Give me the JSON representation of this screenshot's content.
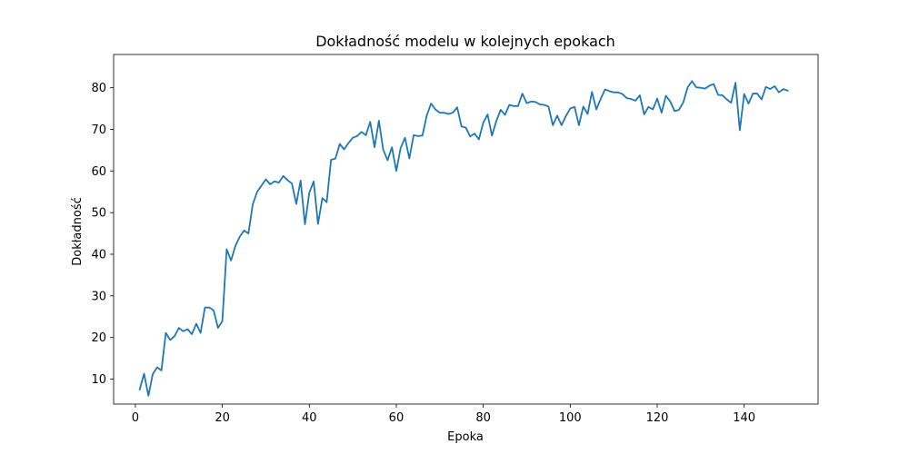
{
  "chart_data": {
    "type": "line",
    "title": "Dokładność modelu w kolejnych epokach",
    "xlabel": "Epoka",
    "ylabel": "Dokładność",
    "xlim": [
      -5,
      157
    ],
    "ylim": [
      4,
      88
    ],
    "xticks": [
      0,
      20,
      40,
      60,
      80,
      100,
      120,
      140
    ],
    "yticks": [
      10,
      20,
      30,
      40,
      50,
      60,
      70,
      80
    ],
    "grid": false,
    "color": "#1f77b4",
    "x": [
      1,
      2,
      3,
      4,
      5,
      6,
      7,
      8,
      9,
      10,
      11,
      12,
      13,
      14,
      15,
      16,
      17,
      18,
      19,
      20,
      21,
      22,
      23,
      24,
      25,
      26,
      27,
      28,
      29,
      30,
      31,
      32,
      33,
      34,
      35,
      36,
      37,
      38,
      39,
      40,
      41,
      42,
      43,
      44,
      45,
      46,
      47,
      48,
      49,
      50,
      51,
      52,
      53,
      54,
      55,
      56,
      57,
      58,
      59,
      60,
      61,
      62,
      63,
      64,
      65,
      66,
      67,
      68,
      69,
      70,
      71,
      72,
      73,
      74,
      75,
      76,
      77,
      78,
      79,
      80,
      81,
      82,
      83,
      84,
      85,
      86,
      87,
      88,
      89,
      90,
      91,
      92,
      93,
      94,
      95,
      96,
      97,
      98,
      99,
      100,
      101,
      102,
      103,
      104,
      105,
      106,
      107,
      108,
      109,
      110,
      111,
      112,
      113,
      114,
      115,
      116,
      117,
      118,
      119,
      120,
      121,
      122,
      123,
      124,
      125,
      126,
      127,
      128,
      129,
      130,
      131,
      132,
      133,
      134,
      135,
      136,
      137,
      138,
      139,
      140,
      141,
      142,
      143,
      144,
      145,
      146,
      147,
      148,
      149,
      150
    ],
    "y": [
      7.5,
      11.3,
      6.0,
      11.2,
      12.8,
      12.1,
      21.1,
      19.4,
      20.3,
      22.3,
      21.5,
      22.0,
      20.8,
      23.3,
      21.1,
      27.2,
      27.2,
      26.5,
      22.3,
      23.9,
      41.2,
      38.5,
      42.0,
      44.2,
      45.7,
      45.0,
      52.0,
      55.0,
      56.5,
      58.0,
      56.8,
      57.5,
      57.2,
      58.8,
      57.8,
      57.0,
      52.1,
      57.7,
      47.2,
      54.8,
      57.5,
      47.3,
      53.5,
      52.5,
      62.7,
      63.0,
      66.5,
      65.2,
      66.7,
      68.0,
      68.4,
      69.4,
      68.6,
      71.8,
      65.7,
      72.1,
      65.1,
      62.6,
      65.7,
      60.0,
      65.5,
      68.0,
      63.0,
      68.6,
      68.4,
      68.5,
      73.3,
      76.2,
      74.8,
      74.0,
      74.0,
      73.7,
      74.0,
      75.3,
      70.7,
      70.4,
      68.3,
      69.0,
      67.6,
      71.6,
      73.6,
      68.5,
      72.0,
      74.7,
      73.5,
      75.9,
      75.6,
      75.6,
      78.6,
      76.3,
      76.7,
      76.6,
      76.0,
      75.9,
      75.5,
      71.0,
      73.3,
      71.0,
      73.2,
      75.0,
      75.4,
      71.0,
      75.5,
      73.7,
      79.0,
      74.8,
      77.3,
      79.6,
      79.2,
      78.9,
      78.9,
      78.5,
      77.5,
      77.3,
      76.9,
      78.2,
      73.6,
      75.4,
      74.8,
      77.4,
      74.0,
      78.1,
      76.7,
      74.4,
      74.7,
      76.5,
      80.1,
      81.6,
      80.1,
      80.0,
      79.8,
      80.5,
      80.9,
      78.3,
      78.2,
      77.2,
      76.4,
      81.2,
      69.8,
      78.5,
      76.2,
      78.6,
      78.6,
      77.2,
      80.2,
      79.7,
      80.4,
      78.9,
      79.7,
      79.3
    ]
  }
}
